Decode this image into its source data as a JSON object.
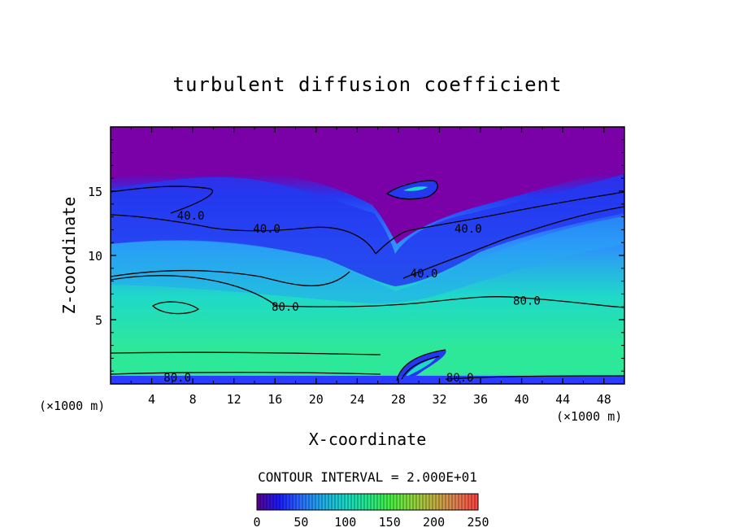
{
  "chart_data": {
    "type": "heatmap",
    "title": "turbulent diffusion coefficient",
    "xlabel": "X-coordinate",
    "ylabel": "Z-coordinate",
    "x_unit_left": "(×1000 m)",
    "x_unit_right": "(×1000 m)",
    "xlim": [
      0,
      50
    ],
    "ylim": [
      0,
      20
    ],
    "x_ticks": [
      "4",
      "8",
      "12",
      "16",
      "20",
      "24",
      "28",
      "32",
      "36",
      "40",
      "44",
      "48"
    ],
    "y_ticks": [
      "5",
      "10",
      "15"
    ],
    "contour_interval_label": "CONTOUR INTERVAL = 2.000E+01",
    "contour_labels": [
      {
        "text": "40.0",
        "x": 7.8,
        "z": 13.1
      },
      {
        "text": "40.0",
        "x": 15.2,
        "z": 12.1
      },
      {
        "text": "40.0",
        "x": 34.8,
        "z": 12.1
      },
      {
        "text": "40.0",
        "x": 30.5,
        "z": 8.6
      },
      {
        "text": "80.0",
        "x": 17.0,
        "z": 6.0
      },
      {
        "text": "80.0",
        "x": 40.5,
        "z": 6.5
      },
      {
        "text": "80.0",
        "x": 6.5,
        "z": 0.5
      },
      {
        "text": "80.0",
        "x": 34.0,
        "z": 0.5
      }
    ],
    "colorbar": {
      "min": 0,
      "max": 250,
      "ticks": [
        "0",
        "50",
        "100",
        "150",
        "200",
        "250"
      ],
      "colors": [
        "#5a008c",
        "#1a1aff",
        "#2a6fff",
        "#1fb0e8",
        "#18d8c8",
        "#22e88c",
        "#44ee44",
        "#8cd83c",
        "#c0b040",
        "#e08050",
        "#ff4040"
      ]
    },
    "field_colors": {
      "upper": "#7a00a8",
      "band": "#2438f0",
      "mid": "#2f8cff",
      "lower": "#1fd9c8",
      "near_ground": "#2ee89a",
      "ground": "#2a3cff"
    }
  }
}
